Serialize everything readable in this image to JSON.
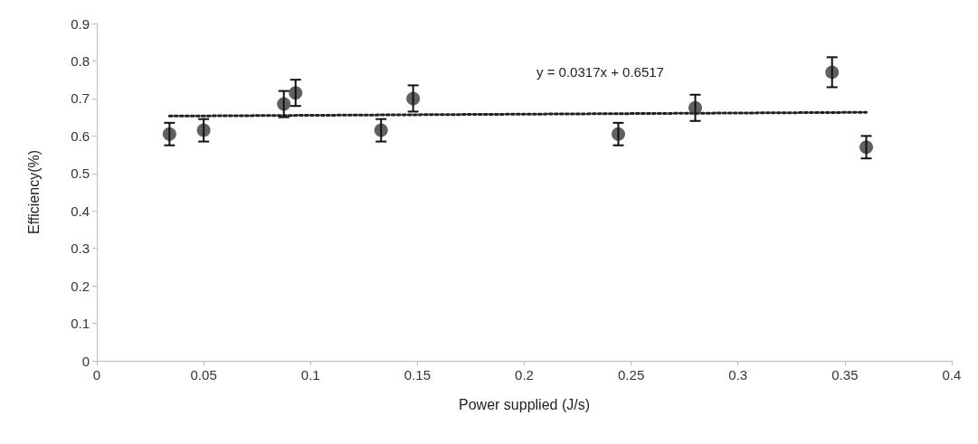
{
  "chart_data": {
    "type": "scatter",
    "xlabel": "Power supplied (J/s)",
    "ylabel": "Efficiency(%)",
    "xlim": [
      0,
      0.4
    ],
    "xticks": [
      0,
      0.05,
      0.1,
      0.15,
      0.2,
      0.25,
      0.3,
      0.35,
      0.4
    ],
    "ylim": [
      0,
      0.9
    ],
    "yticks": [
      0,
      0.1,
      0.2,
      0.3,
      0.4,
      0.5,
      0.6,
      0.7,
      0.8,
      0.9
    ],
    "grid": false,
    "marker": "circle",
    "annotations": [
      "y = 0.0317x + 0.6517"
    ],
    "series": [
      {
        "color": "#3a3a3a",
        "x": [
          0.034,
          0.05,
          0.0875,
          0.093,
          0.133,
          0.148,
          0.244,
          0.28,
          0.344,
          0.36
        ],
        "values": [
          0.605,
          0.615,
          0.685,
          0.715,
          0.615,
          0.7,
          0.605,
          0.675,
          0.77,
          0.57
        ],
        "errors": [
          0.03,
          0.03,
          0.035,
          0.035,
          0.03,
          0.035,
          0.03,
          0.035,
          0.04,
          0.03
        ]
      },
      {
        "type": "line",
        "color": "#222222",
        "line_style": "dotted",
        "marker": "none",
        "x": [
          0.034,
          0.36
        ],
        "values": [
          0.653,
          0.663
        ]
      }
    ]
  }
}
